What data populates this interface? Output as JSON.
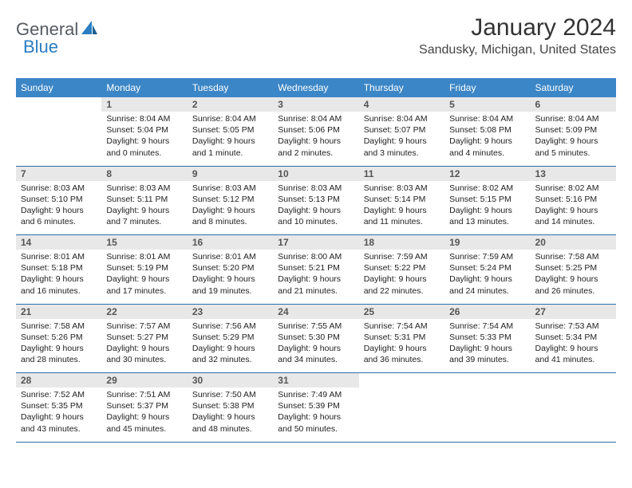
{
  "logo": {
    "part1": "General",
    "part2": "Blue"
  },
  "title": "January 2024",
  "location": "Sandusky, Michigan, United States",
  "colors": {
    "header_bg": "#3b86c6",
    "header_text": "#ffffff",
    "daynum_bg": "#e8e8e8",
    "daynum_text": "#555555",
    "rule": "#2e6ea8",
    "logo_gray": "#555b61",
    "logo_blue": "#2b7dc1"
  },
  "weekdays": [
    "Sunday",
    "Monday",
    "Tuesday",
    "Wednesday",
    "Thursday",
    "Friday",
    "Saturday"
  ],
  "weeks": [
    [
      {
        "day": "",
        "sunrise": "",
        "sunset": "",
        "daylight": ""
      },
      {
        "day": "1",
        "sunrise": "Sunrise: 8:04 AM",
        "sunset": "Sunset: 5:04 PM",
        "daylight": "Daylight: 9 hours and 0 minutes."
      },
      {
        "day": "2",
        "sunrise": "Sunrise: 8:04 AM",
        "sunset": "Sunset: 5:05 PM",
        "daylight": "Daylight: 9 hours and 1 minute."
      },
      {
        "day": "3",
        "sunrise": "Sunrise: 8:04 AM",
        "sunset": "Sunset: 5:06 PM",
        "daylight": "Daylight: 9 hours and 2 minutes."
      },
      {
        "day": "4",
        "sunrise": "Sunrise: 8:04 AM",
        "sunset": "Sunset: 5:07 PM",
        "daylight": "Daylight: 9 hours and 3 minutes."
      },
      {
        "day": "5",
        "sunrise": "Sunrise: 8:04 AM",
        "sunset": "Sunset: 5:08 PM",
        "daylight": "Daylight: 9 hours and 4 minutes."
      },
      {
        "day": "6",
        "sunrise": "Sunrise: 8:04 AM",
        "sunset": "Sunset: 5:09 PM",
        "daylight": "Daylight: 9 hours and 5 minutes."
      }
    ],
    [
      {
        "day": "7",
        "sunrise": "Sunrise: 8:03 AM",
        "sunset": "Sunset: 5:10 PM",
        "daylight": "Daylight: 9 hours and 6 minutes."
      },
      {
        "day": "8",
        "sunrise": "Sunrise: 8:03 AM",
        "sunset": "Sunset: 5:11 PM",
        "daylight": "Daylight: 9 hours and 7 minutes."
      },
      {
        "day": "9",
        "sunrise": "Sunrise: 8:03 AM",
        "sunset": "Sunset: 5:12 PM",
        "daylight": "Daylight: 9 hours and 8 minutes."
      },
      {
        "day": "10",
        "sunrise": "Sunrise: 8:03 AM",
        "sunset": "Sunset: 5:13 PM",
        "daylight": "Daylight: 9 hours and 10 minutes."
      },
      {
        "day": "11",
        "sunrise": "Sunrise: 8:03 AM",
        "sunset": "Sunset: 5:14 PM",
        "daylight": "Daylight: 9 hours and 11 minutes."
      },
      {
        "day": "12",
        "sunrise": "Sunrise: 8:02 AM",
        "sunset": "Sunset: 5:15 PM",
        "daylight": "Daylight: 9 hours and 13 minutes."
      },
      {
        "day": "13",
        "sunrise": "Sunrise: 8:02 AM",
        "sunset": "Sunset: 5:16 PM",
        "daylight": "Daylight: 9 hours and 14 minutes."
      }
    ],
    [
      {
        "day": "14",
        "sunrise": "Sunrise: 8:01 AM",
        "sunset": "Sunset: 5:18 PM",
        "daylight": "Daylight: 9 hours and 16 minutes."
      },
      {
        "day": "15",
        "sunrise": "Sunrise: 8:01 AM",
        "sunset": "Sunset: 5:19 PM",
        "daylight": "Daylight: 9 hours and 17 minutes."
      },
      {
        "day": "16",
        "sunrise": "Sunrise: 8:01 AM",
        "sunset": "Sunset: 5:20 PM",
        "daylight": "Daylight: 9 hours and 19 minutes."
      },
      {
        "day": "17",
        "sunrise": "Sunrise: 8:00 AM",
        "sunset": "Sunset: 5:21 PM",
        "daylight": "Daylight: 9 hours and 21 minutes."
      },
      {
        "day": "18",
        "sunrise": "Sunrise: 7:59 AM",
        "sunset": "Sunset: 5:22 PM",
        "daylight": "Daylight: 9 hours and 22 minutes."
      },
      {
        "day": "19",
        "sunrise": "Sunrise: 7:59 AM",
        "sunset": "Sunset: 5:24 PM",
        "daylight": "Daylight: 9 hours and 24 minutes."
      },
      {
        "day": "20",
        "sunrise": "Sunrise: 7:58 AM",
        "sunset": "Sunset: 5:25 PM",
        "daylight": "Daylight: 9 hours and 26 minutes."
      }
    ],
    [
      {
        "day": "21",
        "sunrise": "Sunrise: 7:58 AM",
        "sunset": "Sunset: 5:26 PM",
        "daylight": "Daylight: 9 hours and 28 minutes."
      },
      {
        "day": "22",
        "sunrise": "Sunrise: 7:57 AM",
        "sunset": "Sunset: 5:27 PM",
        "daylight": "Daylight: 9 hours and 30 minutes."
      },
      {
        "day": "23",
        "sunrise": "Sunrise: 7:56 AM",
        "sunset": "Sunset: 5:29 PM",
        "daylight": "Daylight: 9 hours and 32 minutes."
      },
      {
        "day": "24",
        "sunrise": "Sunrise: 7:55 AM",
        "sunset": "Sunset: 5:30 PM",
        "daylight": "Daylight: 9 hours and 34 minutes."
      },
      {
        "day": "25",
        "sunrise": "Sunrise: 7:54 AM",
        "sunset": "Sunset: 5:31 PM",
        "daylight": "Daylight: 9 hours and 36 minutes."
      },
      {
        "day": "26",
        "sunrise": "Sunrise: 7:54 AM",
        "sunset": "Sunset: 5:33 PM",
        "daylight": "Daylight: 9 hours and 39 minutes."
      },
      {
        "day": "27",
        "sunrise": "Sunrise: 7:53 AM",
        "sunset": "Sunset: 5:34 PM",
        "daylight": "Daylight: 9 hours and 41 minutes."
      }
    ],
    [
      {
        "day": "28",
        "sunrise": "Sunrise: 7:52 AM",
        "sunset": "Sunset: 5:35 PM",
        "daylight": "Daylight: 9 hours and 43 minutes."
      },
      {
        "day": "29",
        "sunrise": "Sunrise: 7:51 AM",
        "sunset": "Sunset: 5:37 PM",
        "daylight": "Daylight: 9 hours and 45 minutes."
      },
      {
        "day": "30",
        "sunrise": "Sunrise: 7:50 AM",
        "sunset": "Sunset: 5:38 PM",
        "daylight": "Daylight: 9 hours and 48 minutes."
      },
      {
        "day": "31",
        "sunrise": "Sunrise: 7:49 AM",
        "sunset": "Sunset: 5:39 PM",
        "daylight": "Daylight: 9 hours and 50 minutes."
      },
      {
        "day": "",
        "sunrise": "",
        "sunset": "",
        "daylight": ""
      },
      {
        "day": "",
        "sunrise": "",
        "sunset": "",
        "daylight": ""
      },
      {
        "day": "",
        "sunrise": "",
        "sunset": "",
        "daylight": ""
      }
    ]
  ]
}
